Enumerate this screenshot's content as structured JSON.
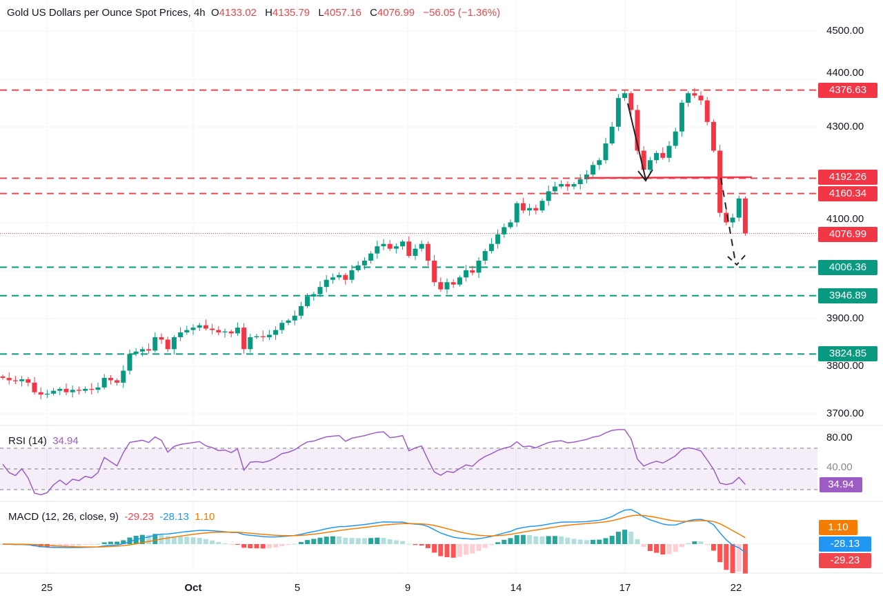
{
  "header": {
    "title": "Gold US Dollars per Ounce Spot Prices, 4h",
    "o_label": "O",
    "open": "4133.02",
    "h_label": "H",
    "high": "4135.79",
    "l_label": "L",
    "low": "4057.16",
    "c_label": "C",
    "close": "4076.99",
    "change": "−56.05 (−1.36%)"
  },
  "rsi": {
    "label": "RSI (14)",
    "value": "34.94",
    "axis": [
      "80.00",
      "40.00"
    ],
    "color": "#9c5cc4"
  },
  "macd": {
    "label": "MACD (12, 26, close, 9)",
    "hist": "-29.23",
    "macd": "-28.13",
    "signal": "1.10",
    "colors": {
      "hist": "#f0474f",
      "macd": "#2196f3",
      "signal": "#f57c00"
    }
  },
  "colors": {
    "up": "#089981",
    "down": "#f23645",
    "resistance": "#e5484d",
    "support": "#089981"
  },
  "price_axis": [
    "4500.00",
    "4400.00",
    "4300.00",
    "4100.00",
    "3900.00",
    "3800.00",
    "3700.00"
  ],
  "time_axis": [
    "25",
    "Oct",
    "5",
    "9",
    "14",
    "17",
    "22"
  ],
  "chart_data": {
    "type": "candlestick",
    "title": "Gold US Dollars per Ounce Spot Prices, 4h",
    "ylim": [
      3700,
      4500
    ],
    "levels": {
      "resistance": [
        "4376.63",
        "4192.26",
        "4160.34"
      ],
      "support": [
        "4006.36",
        "3946.89",
        "3824.85"
      ],
      "last": "4076.99"
    },
    "closes": [
      3775,
      3770,
      3768,
      3772,
      3765,
      3745,
      3740,
      3742,
      3748,
      3752,
      3745,
      3750,
      3748,
      3752,
      3750,
      3755,
      3775,
      3770,
      3765,
      3790,
      3825,
      3830,
      3835,
      3832,
      3860,
      3855,
      3835,
      3860,
      3870,
      3875,
      3880,
      3885,
      3878,
      3875,
      3870,
      3872,
      3868,
      3880,
      3835,
      3860,
      3862,
      3860,
      3865,
      3875,
      3890,
      3895,
      3905,
      3925,
      3945,
      3950,
      3965,
      3980,
      3985,
      3990,
      3980,
      4000,
      4010,
      4020,
      4035,
      4050,
      4055,
      4045,
      4050,
      4060,
      4030,
      4045,
      4055,
      4020,
      3975,
      3960,
      3975,
      3970,
      3985,
      4000,
      3995,
      4020,
      4040,
      4055,
      4075,
      4090,
      4100,
      4140,
      4125,
      4130,
      4125,
      4145,
      4165,
      4175,
      4180,
      4175,
      4180,
      4190,
      4200,
      4220,
      4230,
      4265,
      4300,
      4360,
      4370,
      4335,
      4250,
      4210,
      4230,
      4245,
      4235,
      4260,
      4290,
      4350,
      4370,
      4365,
      4355,
      4310,
      4250,
      4120,
      4100,
      4110,
      4150,
      4077
    ]
  }
}
